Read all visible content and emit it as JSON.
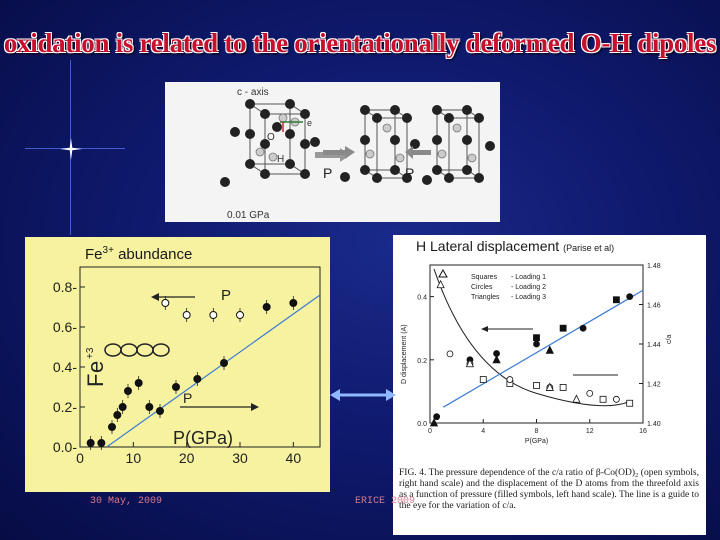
{
  "slide": {
    "title": "oxidation is related to the orientationally deformed O-H dipoles",
    "footer_date": "30 May, 2009",
    "footer_event": "ERICE 2009"
  },
  "crystal_figure": {
    "axis_label": "c - axis",
    "label_e": "e",
    "label_O": "O",
    "label_H": "H",
    "pressure_left": "P",
    "pressure_right": "P",
    "pressure_value": "0.01 GPa"
  },
  "fe_panel": {
    "heading": "Fe",
    "heading_sup": "3+",
    "heading_rest": " abundance",
    "y_axis_label": "F",
    "y_axis_sub": "e",
    "y_axis_sup": "+3",
    "x_axis_label": "P(GPa)",
    "arrow_label_top": "P",
    "arrow_label_bottom": "P"
  },
  "h_panel": {
    "heading": "H Lateral displacement",
    "heading_cite": "(Parise et al)",
    "legend": [
      {
        "symbol": "Squares",
        "text": "- Loading 1"
      },
      {
        "symbol": "Circles",
        "text": "- Loading 2"
      },
      {
        "symbol": "Triangles",
        "text": "- Loading 3"
      }
    ],
    "left_axis_label": "D displacement (A)",
    "right_axis_label": "c/a",
    "x_axis_label": "P(GPa)",
    "caption": "FIG. 4.  The pressure dependence of the c/a ratio of β-Co(OD)₂ (open symbols, right hand scale) and the displacement of the D atoms from the threefold axis as a function of pressure (filled symbols, left hand scale). The line is a guide to the eye for the variation of c/a."
  },
  "chart_data": [
    {
      "type": "scatter",
      "title": "Fe3+ abundance",
      "xlabel": "P(GPa)",
      "ylabel": "Fe+3",
      "xlim": [
        0,
        45
      ],
      "ylim": [
        0.0,
        0.9
      ],
      "x_ticks": [
        "0",
        "10",
        "20",
        "30",
        "40"
      ],
      "y_ticks": [
        "0.0",
        "0.2",
        "0.4",
        "0.6",
        "0.8"
      ],
      "series": [
        {
          "marker": "filled",
          "x": [
            2,
            4,
            6,
            7,
            8,
            9,
            11,
            13,
            15,
            18,
            22,
            27,
            35,
            40
          ],
          "y": [
            0.02,
            0.02,
            0.1,
            0.16,
            0.2,
            0.28,
            0.32,
            0.2,
            0.18,
            0.3,
            0.34,
            0.42,
            0.7,
            0.72
          ]
        },
        {
          "marker": "open",
          "x": [
            16,
            20,
            25,
            30
          ],
          "y": [
            0.72,
            0.66,
            0.66,
            0.66
          ]
        }
      ],
      "trend_line": {
        "x": [
          5,
          45
        ],
        "y": [
          0.0,
          0.76
        ]
      }
    },
    {
      "type": "scatter",
      "title": "H Lateral displacement",
      "xlabel": "P(GPa)",
      "ylabel": "D displacement (A)",
      "y2label": "c/a",
      "xlim": [
        0,
        16
      ],
      "ylim": [
        0.0,
        0.5
      ],
      "y2lim": [
        1.4,
        1.48
      ],
      "x_ticks": [
        "0",
        "4",
        "8",
        "12",
        "16"
      ],
      "y_ticks": [
        "0.0",
        "0.2",
        "0.4"
      ],
      "y2_ticks": [
        "1.40",
        "1.42",
        "1.44",
        "1.46",
        "1.48"
      ],
      "series": [
        {
          "marker": "filled-square",
          "axis": "left",
          "x": [
            8,
            10,
            14
          ],
          "y": [
            0.27,
            0.3,
            0.39
          ]
        },
        {
          "marker": "filled-circle",
          "axis": "left",
          "x": [
            0.5,
            3,
            5,
            8,
            11.5,
            15
          ],
          "y": [
            0.02,
            0.2,
            0.22,
            0.25,
            0.3,
            0.4
          ]
        },
        {
          "marker": "filled-triangle",
          "axis": "left",
          "x": [
            0.3,
            5,
            9
          ],
          "y": [
            0.0,
            0.2,
            0.23
          ]
        },
        {
          "marker": "open-square",
          "axis": "right",
          "x": [
            4,
            6,
            8,
            10,
            13,
            15
          ],
          "y": [
            1.422,
            1.42,
            1.419,
            1.418,
            1.412,
            1.41
          ]
        },
        {
          "marker": "open-circle",
          "axis": "right",
          "x": [
            1.5,
            3,
            6,
            9,
            12,
            14
          ],
          "y": [
            1.435,
            1.43,
            1.422,
            1.418,
            1.415,
            1.412
          ]
        },
        {
          "marker": "open-triangle",
          "axis": "right",
          "x": [
            0.8,
            3,
            9,
            11
          ],
          "y": [
            1.47,
            1.43,
            1.418,
            1.412
          ]
        }
      ]
    }
  ]
}
